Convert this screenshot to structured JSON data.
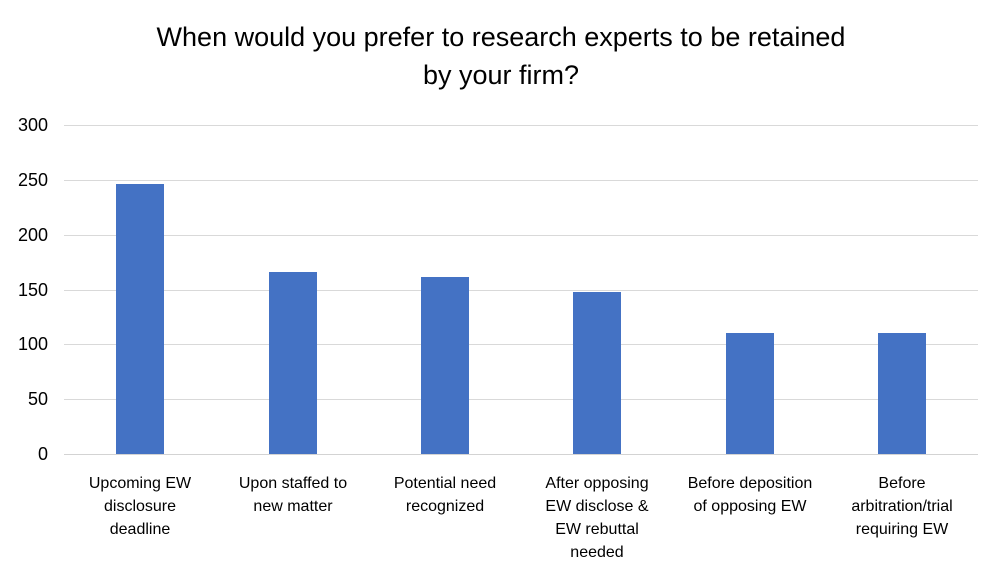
{
  "chart_data": {
    "type": "bar",
    "title": "When would you prefer to research experts to be retained by your firm?",
    "title_lines": [
      "When would you prefer to research experts to be retained",
      "by your firm?"
    ],
    "categories": [
      "Upcoming EW disclosure deadline",
      "Upon staffed to new matter",
      "Potential need recognized",
      "After opposing EW disclose & EW rebuttal needed",
      "Before deposition of opposing EW",
      "Before arbitration/trial requiring EW"
    ],
    "category_lines": [
      [
        "Upcoming EW",
        "disclosure",
        "deadline"
      ],
      [
        "Upon staffed to",
        "new matter"
      ],
      [
        "Potential need",
        "recognized"
      ],
      [
        "After opposing",
        "EW disclose &",
        "EW rebuttal",
        "needed"
      ],
      [
        "Before deposition",
        "of opposing EW"
      ],
      [
        "Before",
        "arbitration/trial",
        "requiring EW"
      ]
    ],
    "values": [
      246,
      166,
      161,
      148,
      110,
      110
    ],
    "y_ticks": [
      0,
      50,
      100,
      150,
      200,
      250,
      300
    ],
    "ylim": [
      0,
      300
    ],
    "xlabel": "",
    "ylabel": "",
    "grid": true,
    "legend": false,
    "bar_color": "#4472C4",
    "gridline_color": "#D9D9D9",
    "text_color": "#000000"
  }
}
